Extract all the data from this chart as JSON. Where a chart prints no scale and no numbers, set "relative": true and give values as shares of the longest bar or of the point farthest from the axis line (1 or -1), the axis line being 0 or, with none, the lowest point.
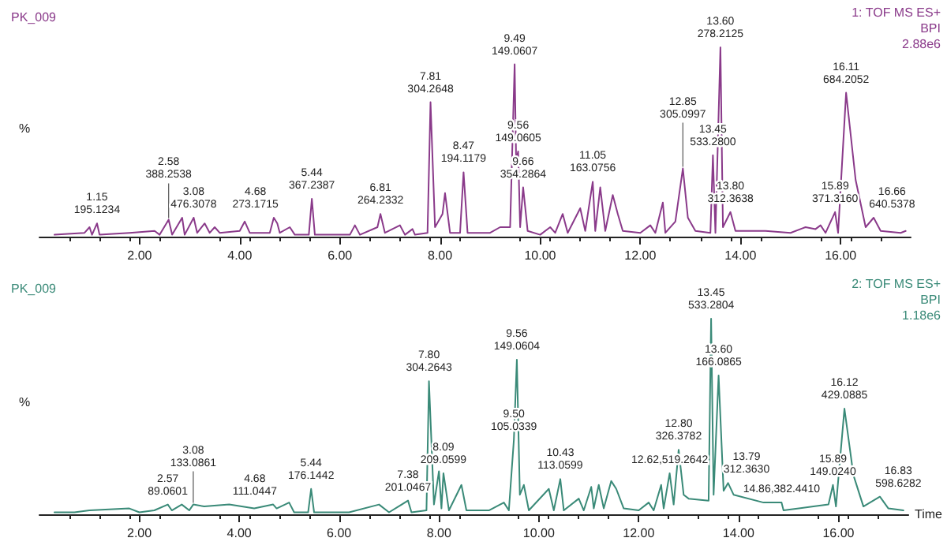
{
  "chart_data": [
    {
      "type": "line",
      "title": "PK_009",
      "ylabel": "%",
      "relative": true,
      "grid": false,
      "tick_labels": "x",
      "marker": "none",
      "line_style": "solid",
      "xlim": [
        0,
        17.4
      ],
      "xticks": [
        {
          "value": 2,
          "label": "2.00"
        },
        {
          "value": 4,
          "label": "4.00"
        },
        {
          "value": 6,
          "label": "6.00"
        },
        {
          "value": 8,
          "label": "8.00"
        },
        {
          "value": 10,
          "label": "10.00"
        },
        {
          "value": 12,
          "label": "12.00"
        },
        {
          "value": 14,
          "label": "14.00"
        },
        {
          "value": 16,
          "label": "16.00"
        }
      ],
      "series": [
        {
          "color": "#8a3a8a",
          "x": [
            0.3,
            0.9,
            1.0,
            1.05,
            1.15,
            1.2,
            1.8,
            2.3,
            2.4,
            2.58,
            2.65,
            2.85,
            2.9,
            3.08,
            3.15,
            3.3,
            3.4,
            3.5,
            3.6,
            4.0,
            4.1,
            4.2,
            4.6,
            4.68,
            4.75,
            4.8,
            5.0,
            5.1,
            5.38,
            5.44,
            5.5,
            6.2,
            6.3,
            6.4,
            6.75,
            6.81,
            6.9,
            7.2,
            7.3,
            7.45,
            7.5,
            7.75,
            7.81,
            7.9,
            8.05,
            8.1,
            8.2,
            8.4,
            8.47,
            8.55,
            9.0,
            9.2,
            9.4,
            9.49,
            9.52,
            9.56,
            9.6,
            9.66,
            9.75,
            10.0,
            10.2,
            10.3,
            10.45,
            10.55,
            10.8,
            10.9,
            11.05,
            11.1,
            11.2,
            11.3,
            11.45,
            11.55,
            11.65,
            12.0,
            12.2,
            12.3,
            12.45,
            12.5,
            12.7,
            12.85,
            12.95,
            13.1,
            13.4,
            13.45,
            13.5,
            13.6,
            13.65,
            13.8,
            13.9,
            14.5,
            15.0,
            15.3,
            15.5,
            15.6,
            15.7,
            15.89,
            15.95,
            16.11,
            16.3,
            16.5,
            16.66,
            16.8,
            17.2,
            17.3
          ],
          "values": [
            0.01,
            0.02,
            0.05,
            0.01,
            0.07,
            0.01,
            0.02,
            0.03,
            0.01,
            0.09,
            0.01,
            0.1,
            0.01,
            0.1,
            0.02,
            0.07,
            0.02,
            0.05,
            0.02,
            0.03,
            0.08,
            0.02,
            0.02,
            0.1,
            0.07,
            0.02,
            0.05,
            0.01,
            0.01,
            0.2,
            0.01,
            0.01,
            0.06,
            0.01,
            0.05,
            0.12,
            0.02,
            0.06,
            0.01,
            0.04,
            0.01,
            0.02,
            0.71,
            0.05,
            0.12,
            0.23,
            0.02,
            0.02,
            0.34,
            0.02,
            0.02,
            0.05,
            0.05,
            0.91,
            0.4,
            0.45,
            0.05,
            0.26,
            0.03,
            0.01,
            0.05,
            0.02,
            0.12,
            0.02,
            0.15,
            0.03,
            0.29,
            0.03,
            0.26,
            0.03,
            0.22,
            0.12,
            0.03,
            0.02,
            0.06,
            0.02,
            0.18,
            0.02,
            0.08,
            0.36,
            0.1,
            0.03,
            0.02,
            0.43,
            0.02,
            1.0,
            0.05,
            0.13,
            0.03,
            0.03,
            0.02,
            0.05,
            0.04,
            0.06,
            0.02,
            0.13,
            0.02,
            0.76,
            0.3,
            0.05,
            0.1,
            0.03,
            0.02,
            0.03
          ]
        }
      ],
      "annotations": [
        "1: TOF MS ES+",
        "BPI",
        "2.88e6",
        {
          "text": "1.15\n195.1234",
          "x": 1.15,
          "y": 0.07
        },
        {
          "text": "2.58\n388.2538",
          "x": 2.58,
          "y": 0.09
        },
        {
          "text": "3.08\n476.3078",
          "x": 3.08,
          "y": 0.1
        },
        {
          "text": "4.68\n273.1715",
          "x": 4.68,
          "y": 0.1
        },
        {
          "text": "5.44\n367.2387",
          "x": 5.44,
          "y": 0.2
        },
        {
          "text": "6.81\n264.2332",
          "x": 6.81,
          "y": 0.12
        },
        {
          "text": "7.81\n304.2648",
          "x": 7.81,
          "y": 0.71
        },
        {
          "text": "8.47\n194.1179",
          "x": 8.47,
          "y": 0.34
        },
        {
          "text": "9.49\n149.0607",
          "x": 9.49,
          "y": 0.91
        },
        {
          "text": "9.56\n149.0605",
          "x": 9.56,
          "y": 0.45
        },
        {
          "text": "9.66\n354.2864",
          "x": 9.66,
          "y": 0.26
        },
        {
          "text": "11.05\n163.0756",
          "x": 11.05,
          "y": 0.29
        },
        {
          "text": "12.85\n305.0997",
          "x": 12.85,
          "y": 0.36
        },
        {
          "text": "13.45\n533.2800",
          "x": 13.45,
          "y": 0.43
        },
        {
          "text": "13.60\n278.2125",
          "x": 13.6,
          "y": 1.0
        },
        {
          "text": "13.80\n312.3638",
          "x": 13.8,
          "y": 0.13
        },
        {
          "text": "15.89\n371.3160",
          "x": 15.89,
          "y": 0.13
        },
        {
          "text": "16.11\n684.2052",
          "x": 16.11,
          "y": 0.76
        },
        {
          "text": "16.66\n640.5378",
          "x": 16.66,
          "y": 0.1
        }
      ]
    },
    {
      "type": "line",
      "title": "PK_009",
      "ylabel": "%",
      "xlabel": "Time",
      "relative": true,
      "grid": false,
      "tick_labels": "x",
      "marker": "none",
      "line_style": "solid",
      "xlim": [
        0,
        17.4
      ],
      "xticks": [
        {
          "value": 2,
          "label": "2.00"
        },
        {
          "value": 4,
          "label": "4.00"
        },
        {
          "value": 6,
          "label": "6.00"
        },
        {
          "value": 8,
          "label": "8.00"
        },
        {
          "value": 10,
          "label": "10.00"
        },
        {
          "value": 12,
          "label": "12.00"
        },
        {
          "value": 14,
          "label": "14.00"
        },
        {
          "value": 16,
          "label": "16.00"
        }
      ],
      "series": [
        {
          "color": "#3a8a78",
          "x": [
            0.3,
            0.7,
            1.0,
            1.8,
            2.0,
            2.3,
            2.57,
            2.65,
            2.85,
            3.0,
            3.08,
            3.3,
            3.8,
            4.3,
            4.68,
            4.75,
            5.0,
            5.1,
            5.38,
            5.44,
            5.5,
            6.2,
            6.8,
            7.0,
            7.38,
            7.45,
            7.75,
            7.8,
            7.9,
            8.0,
            8.05,
            8.09,
            8.2,
            8.45,
            8.55,
            9.0,
            9.3,
            9.4,
            9.5,
            9.56,
            9.62,
            9.7,
            9.8,
            10.2,
            10.3,
            10.43,
            10.5,
            10.8,
            10.9,
            11.05,
            11.1,
            11.2,
            11.3,
            11.45,
            11.55,
            11.7,
            12.0,
            12.2,
            12.3,
            12.45,
            12.5,
            12.62,
            12.7,
            12.8,
            12.9,
            13.0,
            13.4,
            13.45,
            13.5,
            13.6,
            13.7,
            13.79,
            13.9,
            14.5,
            14.86,
            14.9,
            15.5,
            15.8,
            15.89,
            15.95,
            16.12,
            16.3,
            16.5,
            16.83,
            17.0,
            17.3
          ],
          "values": [
            0.01,
            0.01,
            0.02,
            0.03,
            0.01,
            0.02,
            0.05,
            0.02,
            0.05,
            0.02,
            0.05,
            0.04,
            0.05,
            0.03,
            0.05,
            0.03,
            0.06,
            0.01,
            0.01,
            0.13,
            0.01,
            0.01,
            0.05,
            0.01,
            0.07,
            0.01,
            0.02,
            0.68,
            0.05,
            0.22,
            0.03,
            0.21,
            0.02,
            0.15,
            0.02,
            0.02,
            0.06,
            0.02,
            0.38,
            0.79,
            0.1,
            0.15,
            0.02,
            0.13,
            0.02,
            0.18,
            0.02,
            0.08,
            0.02,
            0.14,
            0.03,
            0.15,
            0.03,
            0.17,
            0.13,
            0.03,
            0.02,
            0.06,
            0.02,
            0.15,
            0.03,
            0.21,
            0.05,
            0.33,
            0.1,
            0.08,
            0.07,
            1.0,
            0.1,
            0.71,
            0.12,
            0.16,
            0.1,
            0.06,
            0.06,
            0.02,
            0.04,
            0.05,
            0.15,
            0.04,
            0.54,
            0.2,
            0.04,
            0.09,
            0.03,
            0.02
          ]
        }
      ],
      "annotations": [
        "2: TOF MS ES+",
        "BPI",
        "1.18e6",
        {
          "text": "2.57\n89.0601",
          "x": 2.57,
          "y": 0.05
        },
        {
          "text": "3.08\n133.0861",
          "x": 3.08,
          "y": 0.05
        },
        {
          "text": "4.68\n111.0447",
          "x": 4.68,
          "y": 0.05
        },
        {
          "text": "5.44\n176.1442",
          "x": 5.44,
          "y": 0.13
        },
        {
          "text": "7.38\n201.0467",
          "x": 7.38,
          "y": 0.07
        },
        {
          "text": "7.80\n304.2643",
          "x": 7.8,
          "y": 0.68
        },
        {
          "text": "8.09\n209.0599",
          "x": 8.09,
          "y": 0.21
        },
        {
          "text": "9.50\n105.0339",
          "x": 9.5,
          "y": 0.38
        },
        {
          "text": "9.56\n149.0604",
          "x": 9.56,
          "y": 0.79
        },
        {
          "text": "10.43\n113.0599",
          "x": 10.43,
          "y": 0.18
        },
        {
          "text": "12.62,519.2642",
          "x": 12.62,
          "y": 0.21
        },
        {
          "text": "12.80\n326.3782",
          "x": 12.8,
          "y": 0.33
        },
        {
          "text": "13.45\n533.2804",
          "x": 13.45,
          "y": 1.0
        },
        {
          "text": "13.60\n166.0865",
          "x": 13.6,
          "y": 0.71
        },
        {
          "text": "13.79\n312.3630",
          "x": 13.79,
          "y": 0.16
        },
        {
          "text": "14.86,382.4410",
          "x": 14.86,
          "y": 0.06
        },
        {
          "text": "15.89\n149.0240",
          "x": 15.89,
          "y": 0.15
        },
        {
          "text": "16.12\n429.0885",
          "x": 16.12,
          "y": 0.54
        },
        {
          "text": "16.83\n598.6282",
          "x": 16.83,
          "y": 0.09
        }
      ]
    }
  ]
}
